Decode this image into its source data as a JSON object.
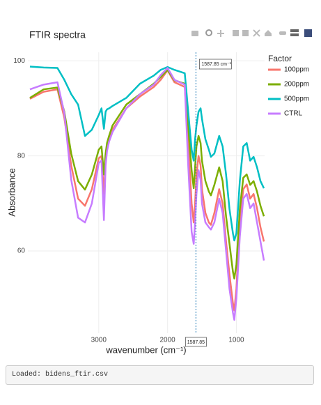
{
  "chart_data": {
    "type": "line",
    "title": "FTIR spectra",
    "x_label": "wavenumber (cm⁻¹)",
    "y_label": "Absorbance",
    "legend_title": "Factor",
    "legend": "right",
    "grid": true,
    "xlim": [
      4030,
      590
    ],
    "ylim": [
      42.7,
      101.8
    ],
    "xticks": [
      3000,
      2000,
      1000
    ],
    "yticks": [
      60,
      80,
      100
    ],
    "x": [
      4000,
      3800,
      3600,
      3500,
      3400,
      3300,
      3200,
      3100,
      3000,
      2960,
      2925,
      2900,
      2880,
      2850,
      2800,
      2600,
      2400,
      2200,
      2100,
      2000,
      1900,
      1750,
      1700,
      1650,
      1620,
      1600,
      1580,
      1550,
      1520,
      1500,
      1450,
      1400,
      1370,
      1320,
      1250,
      1200,
      1150,
      1100,
      1050,
      1030,
      1000,
      950,
      900,
      850,
      800,
      750,
      700,
      650,
      600
    ],
    "series": [
      {
        "name": "100ppm",
        "color": "#f8766d",
        "values": [
          92,
          93.5,
          94,
          88,
          78,
          71,
          69.5,
          73,
          79.5,
          80,
          72,
          79,
          81.5,
          83.5,
          85.5,
          90,
          92.5,
          94.5,
          96,
          98,
          95.5,
          94.5,
          83,
          70,
          66,
          70,
          76,
          80,
          78,
          73,
          68,
          66,
          65.5,
          68,
          73,
          70,
          62,
          55,
          49,
          47.5,
          52,
          66,
          73,
          74,
          71,
          72,
          69,
          65,
          62
        ]
      },
      {
        "name": "200ppm",
        "color": "#7cae00",
        "values": [
          92.2,
          94,
          94.4,
          89.3,
          80.5,
          74.7,
          72.9,
          76.1,
          81.3,
          82,
          76.1,
          80.5,
          82.7,
          84.2,
          86.4,
          90.8,
          93,
          95.2,
          96.6,
          98.1,
          95.9,
          95.2,
          86.4,
          76.9,
          73.2,
          77.6,
          82,
          84.2,
          82.7,
          79,
          74.7,
          72.5,
          71.7,
          73.9,
          77.6,
          74.7,
          67.3,
          61.5,
          55.6,
          54.2,
          57.1,
          68.8,
          75.4,
          76.1,
          73.9,
          74.7,
          72.5,
          69.5,
          67.3
        ]
      },
      {
        "name": "500ppm",
        "color": "#00bfc4",
        "values": [
          98.8,
          98.6,
          98.5,
          96,
          93,
          90.8,
          84.2,
          85.5,
          88.6,
          90,
          85.7,
          89.3,
          89.8,
          90,
          90.5,
          92.2,
          95.2,
          96.9,
          98.1,
          98.7,
          98.1,
          97.4,
          89.3,
          81.3,
          79,
          83.5,
          86.4,
          89.3,
          90,
          87.8,
          83.5,
          81.3,
          79.8,
          80.5,
          84.2,
          82,
          76.1,
          68.8,
          63.7,
          62.2,
          63.7,
          74.7,
          82,
          82.7,
          79,
          79.8,
          77.6,
          74.7,
          73.2
        ]
      },
      {
        "name": "CTRL",
        "color": "#c77cff",
        "values": [
          94,
          95,
          95.5,
          89,
          75,
          67,
          66,
          70,
          78.5,
          79,
          66.5,
          78,
          81,
          83,
          85,
          90,
          93,
          95,
          97,
          98.5,
          96,
          95,
          78,
          64,
          61.5,
          66,
          72,
          77,
          75,
          70,
          66,
          65,
          64.5,
          66,
          71,
          68,
          60,
          52,
          47,
          45.5,
          50,
          63,
          71,
          72,
          69,
          70,
          66,
          62,
          58
        ]
      }
    ],
    "hover": {
      "x": 1587.85,
      "label": "1587.85 cm⁻¹",
      "axis_label": "1587.85"
    }
  },
  "status": "Loaded: bidens_ftir.csv"
}
